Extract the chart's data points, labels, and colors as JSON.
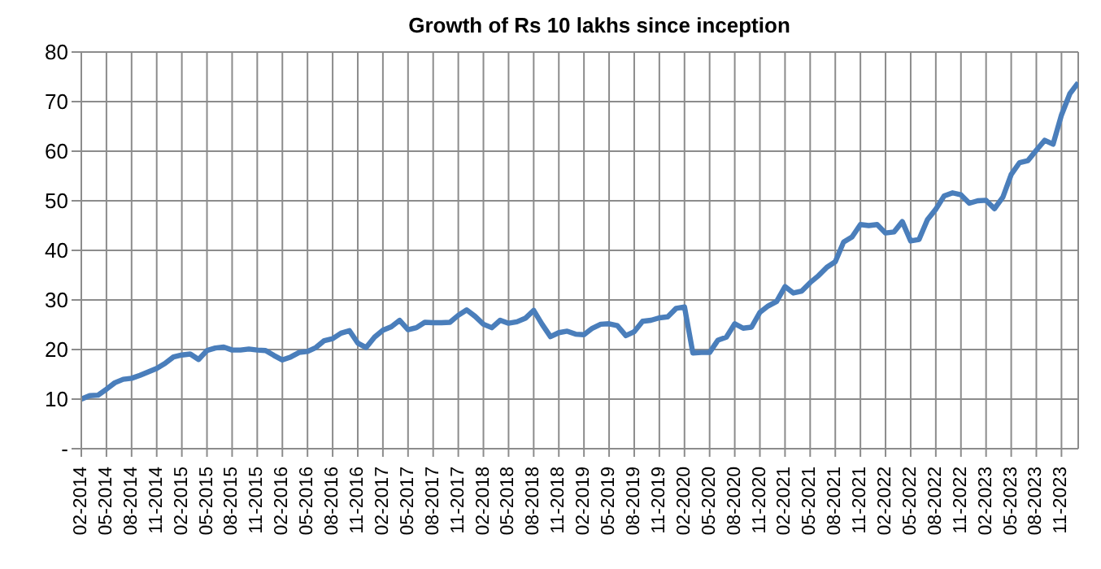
{
  "chart_data": {
    "type": "line",
    "title": "Growth of Rs 10 lakhs since inception",
    "categories": [
      "02-2014",
      null,
      null,
      "05-2014",
      null,
      null,
      "08-2014",
      null,
      null,
      "11-2014",
      null,
      null,
      "02-2015",
      null,
      null,
      "05-2015",
      null,
      null,
      "08-2015",
      null,
      null,
      "11-2015",
      null,
      null,
      "02-2016",
      null,
      null,
      "05-2016",
      null,
      null,
      "08-2016",
      null,
      null,
      "11-2016",
      null,
      null,
      "02-2017",
      null,
      null,
      "05-2017",
      null,
      null,
      "08-2017",
      null,
      null,
      "11-2017",
      null,
      null,
      "02-2018",
      null,
      null,
      "05-2018",
      null,
      null,
      "08-2018",
      null,
      null,
      "11-2018",
      null,
      null,
      "02-2019",
      null,
      null,
      "05-2019",
      null,
      null,
      "08-2019",
      null,
      null,
      "11-2019",
      null,
      null,
      "02-2020",
      null,
      null,
      "05-2020",
      null,
      null,
      "08-2020",
      null,
      null,
      "11-2020",
      null,
      null,
      "02-2021",
      null,
      null,
      "05-2021",
      null,
      null,
      "08-2021",
      null,
      null,
      "11-2021",
      null,
      null,
      "02-2022",
      null,
      null,
      "05-2022",
      null,
      null,
      "08-2022",
      null,
      null,
      "11-2022",
      null,
      null,
      "02-2023",
      null,
      null,
      "05-2023",
      null,
      null,
      "08-2023",
      null,
      null,
      "11-2023",
      null,
      null
    ],
    "series": [
      {
        "color": "#4a7ebb",
        "values": [
          10,
          10.7,
          10.8,
          12,
          13.3,
          14,
          14.2,
          14.8,
          15.5,
          16.2,
          17.2,
          18.5,
          18.9,
          19.1,
          18,
          19.8,
          20.3,
          20.5,
          19.9,
          19.9,
          20.1,
          19.9,
          19.8,
          18.8,
          17.9,
          18.5,
          19.4,
          19.6,
          20.4,
          21.8,
          22.2,
          23.3,
          23.8,
          21.3,
          20.4,
          22.5,
          23.9,
          24.6,
          25.9,
          24,
          24.4,
          25.5,
          25.4,
          25.4,
          25.5,
          26.9,
          28,
          26.7,
          25.1,
          24.4,
          25.9,
          25.3,
          25.6,
          26.3,
          27.9,
          25.1,
          22.6,
          23.4,
          23.7,
          23.1,
          23,
          24.3,
          25.1,
          25.2,
          24.8,
          22.8,
          23.6,
          25.7,
          25.9,
          26.4,
          26.6,
          28.3,
          28.6,
          19.3,
          19.4,
          19.4,
          21.9,
          22.5,
          25.2,
          24.3,
          24.5,
          27.5,
          28.8,
          29.7,
          32.7,
          31.4,
          31.8,
          33.5,
          34.9,
          36.6,
          37.7,
          41.7,
          42.7,
          45.2,
          45,
          45.2,
          43.5,
          43.7,
          45.8,
          41.9,
          42.2,
          46.2,
          48.3,
          51,
          51.6,
          51.2,
          49.5,
          50,
          50.1,
          48.4,
          50.7,
          55.3,
          57.7,
          58.1,
          60.2,
          62.2,
          61.4,
          67.3,
          71.6,
          73.8
        ]
      }
    ],
    "ylim": [
      0,
      80
    ],
    "yticks": [
      {
        "value": 0,
        "label": "-"
      },
      10,
      20,
      30,
      40,
      50,
      60,
      70,
      80
    ],
    "grid": true
  }
}
